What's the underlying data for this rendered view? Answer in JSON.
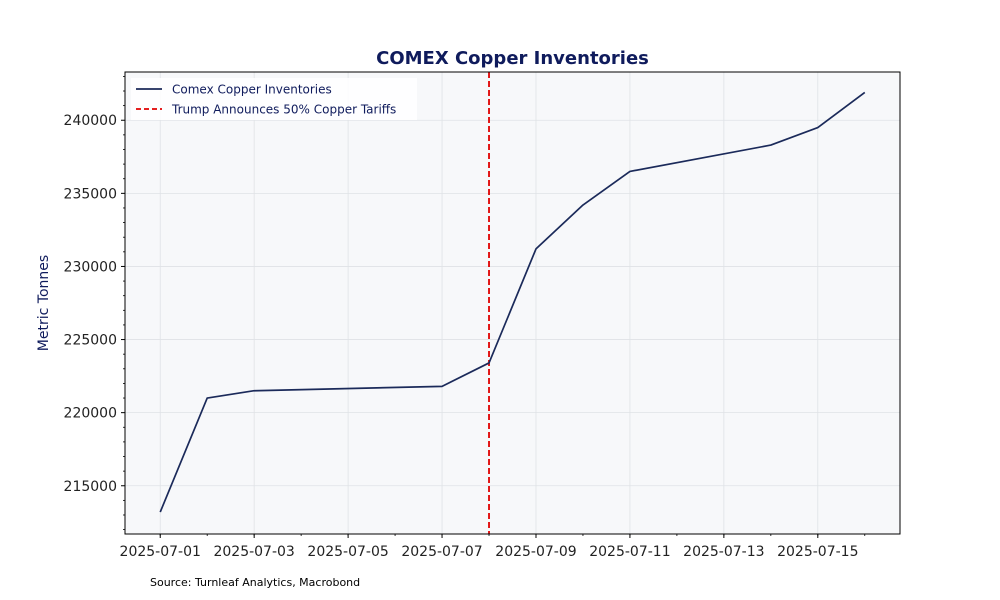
{
  "chart_data": {
    "type": "line",
    "title": "COMEX Copper Inventories",
    "xlabel": "",
    "ylabel": "Metric Tonnes",
    "x_type": "date",
    "xlim": [
      "2025-06-30T06:00",
      "2025-07-16T18:00"
    ],
    "ylim": [
      211700,
      243300
    ],
    "x_ticks": [
      "2025-07-01",
      "2025-07-03",
      "2025-07-05",
      "2025-07-07",
      "2025-07-09",
      "2025-07-11",
      "2025-07-13",
      "2025-07-15"
    ],
    "y_ticks": [
      215000,
      220000,
      225000,
      230000,
      235000,
      240000
    ],
    "grid": true,
    "legend_position": "top-left",
    "series": [
      {
        "name": "Comex Copper Inventories",
        "color": "#1b2a5a",
        "style": "solid",
        "points": [
          {
            "x": "2025-07-01",
            "y": 213200
          },
          {
            "x": "2025-07-02",
            "y": 221000
          },
          {
            "x": "2025-07-03",
            "y": 221500
          },
          {
            "x": "2025-07-07",
            "y": 221800
          },
          {
            "x": "2025-07-08",
            "y": 223400
          },
          {
            "x": "2025-07-09",
            "y": 231200
          },
          {
            "x": "2025-07-10",
            "y": 234200
          },
          {
            "x": "2025-07-11",
            "y": 236500
          },
          {
            "x": "2025-07-14",
            "y": 238300
          },
          {
            "x": "2025-07-15",
            "y": 239500
          },
          {
            "x": "2025-07-16",
            "y": 241900
          }
        ]
      }
    ],
    "annotations": [
      {
        "type": "vline",
        "name": "Trump Announces 50% Copper Tariffs",
        "x": "2025-07-08",
        "color": "#e00000",
        "style": "dashed"
      }
    ]
  },
  "footer": {
    "source": "Source: Turnleaf Analytics, Macrobond"
  }
}
